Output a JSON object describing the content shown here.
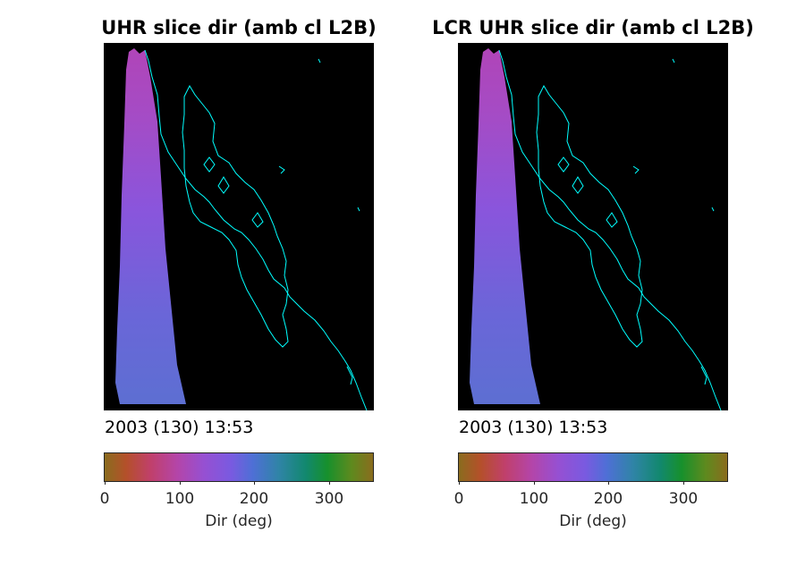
{
  "figure": {
    "panels": [
      {
        "title": "UHR slice dir (amb cl L2B)",
        "timestamp": "2003 (130) 13:53",
        "colorbar": {
          "ticks": [
            "0",
            "100",
            "200",
            "300"
          ],
          "label": "Dir (deg)"
        }
      },
      {
        "title": "LCR UHR slice dir (amb cl L2B)",
        "timestamp": "2003 (130) 13:53",
        "colorbar": {
          "ticks": [
            "0",
            "100",
            "200",
            "300"
          ],
          "label": "Dir (deg)"
        }
      }
    ],
    "colors": {
      "background": "#000000",
      "coastline": "#00ffff",
      "swath_top": "#b045b8",
      "swath_mid": "#8a55dc",
      "swath_bottom": "#5d6fd2"
    }
  }
}
